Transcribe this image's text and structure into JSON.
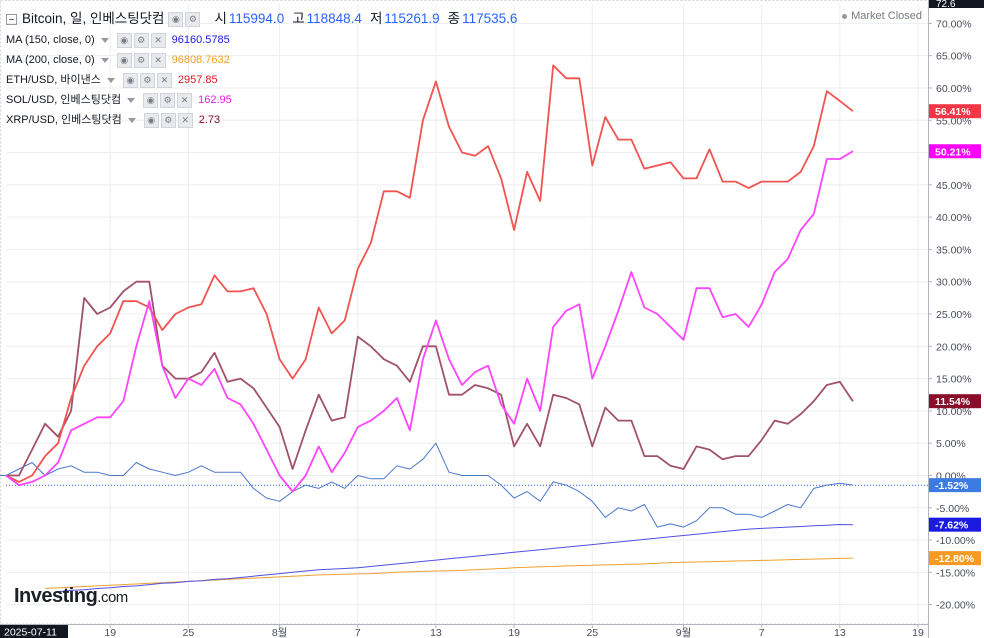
{
  "header": {
    "symbol_title": "Bitcoin, 일, 인베스팅닷컴",
    "ohlc": [
      {
        "key": "시",
        "value": "115994.0"
      },
      {
        "key": "고",
        "value": "118848.4"
      },
      {
        "key": "저",
        "value": "115261.9"
      },
      {
        "key": "종",
        "value": "117535.6"
      }
    ],
    "market_status": "Market Closed"
  },
  "legend": [
    {
      "label": "MA (150, close, 0)",
      "value": "96160.5785",
      "color": "#1a1ae0"
    },
    {
      "label": "MA (200, close, 0)",
      "value": "96808.7632",
      "color": "#f0a020"
    },
    {
      "label": "ETH/USD, 바이낸스",
      "value": "2957.85",
      "color": "#d81b1b"
    },
    {
      "label": "SOL/USD, 인베스팅닷컴",
      "value": "162.95",
      "color": "#e91ee9"
    },
    {
      "label": "XRP/USD, 인베스팅닷컴",
      "value": "2.73",
      "color": "#880e2a"
    }
  ],
  "logo": {
    "brand": "Investing",
    "suffix": ".com"
  },
  "chart_data": {
    "type": "line",
    "y_unit": "%",
    "ylim": [
      -23,
      73
    ],
    "y_ticks": [
      "70.00%",
      "65.00%",
      "60.00%",
      "55.00%",
      "50.00%",
      "45.00%",
      "40.00%",
      "35.00%",
      "30.00%",
      "25.00%",
      "20.00%",
      "15.00%",
      "10.00%",
      "5.00%",
      "0.00%",
      "-5.00%",
      "-10.00%",
      "-15.00%",
      "-20.00%"
    ],
    "y_top_label": "72.6",
    "x_labels": [
      {
        "i": 0,
        "label": "2025-07-11"
      },
      {
        "i": 8,
        "label": "19"
      },
      {
        "i": 14,
        "label": "25"
      },
      {
        "i": 21,
        "label": "8월"
      },
      {
        "i": 27,
        "label": "7"
      },
      {
        "i": 33,
        "label": "13"
      },
      {
        "i": 39,
        "label": "19"
      },
      {
        "i": 45,
        "label": "25"
      },
      {
        "i": 52,
        "label": "9월"
      },
      {
        "i": 58,
        "label": "7"
      },
      {
        "i": 64,
        "label": "13"
      },
      {
        "i": 70,
        "label": "19"
      }
    ],
    "x_count": 71,
    "series": [
      {
        "name": "ETH/USD, 바이낸스",
        "color": "#f05350",
        "width": 1.8,
        "end_label": "56.41%",
        "values": [
          0,
          -1,
          0,
          3,
          5,
          12,
          17,
          20,
          22,
          27,
          27,
          26,
          22.5,
          25,
          26,
          26.5,
          31,
          28.5,
          28.5,
          29,
          25,
          18,
          15,
          18,
          26,
          22,
          24,
          32,
          36,
          44,
          44,
          43,
          55,
          61,
          54,
          50,
          49.5,
          51,
          46,
          38,
          47,
          42.5,
          63.5,
          61.5,
          61.5,
          48,
          55.5,
          52,
          52,
          47.5,
          48,
          48.5,
          46,
          46,
          50.5,
          45.5,
          45.5,
          44.5,
          45.5,
          45.5,
          45.5,
          47,
          51,
          59.5,
          58,
          56.4
        ]
      },
      {
        "name": "SOL/USD, 인베스팅닷컴",
        "color": "#ff44ff",
        "width": 1.8,
        "end_label": "50.21%",
        "values": [
          0,
          -1.5,
          -1,
          0,
          2,
          7,
          8,
          9,
          9,
          11.5,
          20,
          27,
          17,
          12,
          15,
          14,
          16.5,
          12,
          11,
          8,
          4,
          0,
          -2.5,
          0,
          4.5,
          0.5,
          3.5,
          7.5,
          8.5,
          10,
          12,
          7,
          18,
          24,
          18,
          14,
          16,
          17,
          11,
          8,
          15,
          10,
          23,
          25.5,
          26.5,
          15,
          20,
          25.5,
          31.5,
          26,
          25,
          23,
          21,
          29,
          29,
          24.5,
          25,
          23,
          26.5,
          31.5,
          33.5,
          38,
          40.5,
          49,
          49,
          50.2
        ]
      },
      {
        "name": "XRP/USD, 인베스팅닷컴",
        "color": "#a0526a",
        "width": 1.8,
        "end_label": "11.54%",
        "values": [
          0,
          0,
          4,
          8,
          6,
          10,
          27.5,
          25,
          26,
          28.5,
          30,
          30,
          17,
          15,
          15,
          16,
          19,
          14.5,
          15,
          13.5,
          10.5,
          7.5,
          1,
          7,
          12.5,
          8.5,
          9,
          21.5,
          20,
          18,
          17,
          14.5,
          20,
          20,
          12.5,
          12.5,
          14,
          13.5,
          12.5,
          4.5,
          8,
          4.5,
          12.5,
          12,
          11,
          4.5,
          10.5,
          8.5,
          8.5,
          3,
          3,
          1.5,
          1,
          4.5,
          4,
          2.5,
          3,
          3,
          5.5,
          8.5,
          8,
          9.5,
          11.5,
          14,
          14.5,
          11.5
        ]
      },
      {
        "name": "Bitcoin",
        "color": "#4a78c8",
        "width": 1.0,
        "end_label": "-1.52%",
        "values": [
          0,
          0,
          1,
          2,
          0,
          1,
          1.5,
          0.5,
          0.5,
          0,
          0,
          2,
          1,
          0.5,
          0,
          0.5,
          1.5,
          0.5,
          0.5,
          0.5,
          -2,
          -3.5,
          -4,
          -2.5,
          -1.5,
          -2,
          -1,
          -2,
          0,
          -0.5,
          -0.5,
          1.5,
          1,
          2.5,
          5,
          0.5,
          0,
          0,
          0,
          -1.5,
          -3.5,
          -2.5,
          -4,
          -1,
          -1.5,
          -2.5,
          -4,
          -6.5,
          -5,
          -5.5,
          -4.5,
          -8,
          -7.5,
          -8,
          -7,
          -5,
          -5,
          -6,
          -6,
          -6.5,
          -5.5,
          -4.5,
          -5,
          -2,
          -1.5,
          -1.2,
          -1.5
        ]
      },
      {
        "name": "MA (150, close, 0)",
        "color": "#5050e0",
        "width": 1.0,
        "end_label": "-7.62%",
        "values": [
          -18,
          -17.8,
          -17.7,
          -17.5,
          -17.4,
          -17.2,
          -17.1,
          -16.9,
          -16.7,
          -16.6,
          -16.4,
          -16.3,
          -16.1,
          -16,
          -15.8,
          -15.6,
          -15.4,
          -15.2,
          -15,
          -14.8,
          -14.6,
          -14.5,
          -14.4,
          -14.3,
          -14.1,
          -13.9,
          -13.7,
          -13.5,
          -13.3,
          -13.1,
          -12.9,
          -12.7,
          -12.5,
          -12.3,
          -12.1,
          -11.9,
          -11.7,
          -11.5,
          -11.3,
          -11.1,
          -10.9,
          -10.7,
          -10.5,
          -10.3,
          -10.1,
          -9.9,
          -9.7,
          -9.5,
          -9.3,
          -9.1,
          -8.9,
          -8.7,
          -8.5,
          -8.3,
          -8.2,
          -8.1,
          -8,
          -7.9,
          -7.8,
          -7.7,
          -7.6,
          -7.62
        ]
      },
      {
        "name": "MA (200, close, 0)",
        "color": "#f0a030",
        "width": 1.0,
        "end_label": "-12.80%",
        "values": [
          -17.5,
          -17.4,
          -17.3,
          -17.2,
          -17.1,
          -17,
          -16.9,
          -16.8,
          -16.7,
          -16.6,
          -16.5,
          -16.4,
          -16.3,
          -16.2,
          -16.1,
          -16,
          -15.9,
          -15.8,
          -15.7,
          -15.6,
          -15.5,
          -15.4,
          -15.35,
          -15.3,
          -15.25,
          -15.2,
          -15.1,
          -15,
          -14.9,
          -14.85,
          -14.8,
          -14.75,
          -14.7,
          -14.6,
          -14.5,
          -14.4,
          -14.3,
          -14.2,
          -14.15,
          -14.1,
          -14,
          -13.95,
          -13.9,
          -13.85,
          -13.8,
          -13.75,
          -13.7,
          -13.6,
          -13.5,
          -13.45,
          -13.4,
          -13.35,
          -13.3,
          -13.25,
          -13.2,
          -13.15,
          -13.1,
          -13.05,
          -13,
          -12.95,
          -12.9,
          -12.85,
          -12.8
        ]
      }
    ],
    "label_colors": [
      {
        "label": "56.41%",
        "bg": "#f23645"
      },
      {
        "label": "50.21%",
        "bg": "#ff00ff"
      },
      {
        "label": "11.54%",
        "bg": "#880e2a"
      },
      {
        "label": "-1.52%",
        "bg": "#3d7be0"
      },
      {
        "label": "-7.62%",
        "bg": "#1a1ae0"
      },
      {
        "label": "-12.80%",
        "bg": "#f59a23"
      }
    ],
    "grid": true,
    "reference_line": {
      "value": -1.52,
      "style": "dotted",
      "color": "#2a5bd7"
    }
  }
}
